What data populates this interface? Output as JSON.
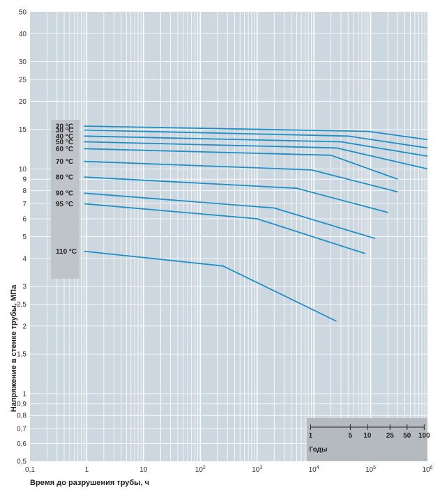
{
  "chart_data": {
    "type": "line",
    "title": "",
    "xlabel": "Время до разрушения трубы, ч",
    "ylabel": "Напряжение в стенке трубы, МПа",
    "x_scale": "log",
    "y_scale": "log",
    "xlim": [
      0.1,
      1000000
    ],
    "ylim": [
      0.5,
      50
    ],
    "grid": true,
    "x_tick_labels": [
      {
        "value": 0.1,
        "base": "0,1",
        "sup": ""
      },
      {
        "value": 1,
        "base": "1",
        "sup": ""
      },
      {
        "value": 10,
        "base": "10",
        "sup": ""
      },
      {
        "value": 100,
        "base": "10",
        "sup": "2"
      },
      {
        "value": 1000,
        "base": "10",
        "sup": "3"
      },
      {
        "value": 10000,
        "base": "10",
        "sup": "4"
      },
      {
        "value": 100000,
        "base": "10",
        "sup": "5"
      },
      {
        "value": 1000000,
        "base": "10",
        "sup": "6"
      }
    ],
    "y_tick_labels": [
      {
        "value": 0.5,
        "label": "0,5"
      },
      {
        "value": 0.6,
        "label": "0,6"
      },
      {
        "value": 0.7,
        "label": "0,7"
      },
      {
        "value": 0.8,
        "label": "0,8"
      },
      {
        "value": 0.9,
        "label": "0,9"
      },
      {
        "value": 1,
        "label": "1"
      },
      {
        "value": 1.5,
        "label": "1,5"
      },
      {
        "value": 2,
        "label": "2"
      },
      {
        "value": 2.5,
        "label": "2,5"
      },
      {
        "value": 3,
        "label": "3"
      },
      {
        "value": 4,
        "label": "4"
      },
      {
        "value": 5,
        "label": "5"
      },
      {
        "value": 6,
        "label": "6"
      },
      {
        "value": 7,
        "label": "7"
      },
      {
        "value": 8,
        "label": "8"
      },
      {
        "value": 9,
        "label": "9"
      },
      {
        "value": 10,
        "label": "10"
      },
      {
        "value": 15,
        "label": "15"
      },
      {
        "value": 20,
        "label": "20"
      },
      {
        "value": 25,
        "label": "25"
      },
      {
        "value": 30,
        "label": "30"
      },
      {
        "value": 40,
        "label": "40"
      },
      {
        "value": 50,
        "label": "50"
      }
    ],
    "series": [
      {
        "name": "20 °C",
        "points": [
          [
            0.9,
            15.5
          ],
          [
            90000,
            14.7
          ],
          [
            1000000,
            13.5
          ]
        ]
      },
      {
        "name": "30 °C",
        "points": [
          [
            0.9,
            14.9
          ],
          [
            40000,
            14.0
          ],
          [
            1000000,
            12.4
          ]
        ]
      },
      {
        "name": "40 °C",
        "points": [
          [
            0.9,
            14.0
          ],
          [
            30000,
            13.2
          ],
          [
            1000000,
            11.4
          ]
        ]
      },
      {
        "name": "50 °C",
        "points": [
          [
            0.9,
            13.2
          ],
          [
            25000,
            12.4
          ],
          [
            1000000,
            10.0
          ]
        ]
      },
      {
        "name": "60 °C",
        "points": [
          [
            0.9,
            12.3
          ],
          [
            20000,
            11.5
          ],
          [
            300000,
            9.0
          ]
        ]
      },
      {
        "name": "70 °C",
        "points": [
          [
            0.9,
            10.8
          ],
          [
            9000,
            9.9
          ],
          [
            300000,
            7.9
          ]
        ]
      },
      {
        "name": "80 °C",
        "points": [
          [
            0.9,
            9.2
          ],
          [
            5000,
            8.2
          ],
          [
            200000,
            6.4
          ]
        ]
      },
      {
        "name": "90 °C",
        "points": [
          [
            0.9,
            7.8
          ],
          [
            2000,
            6.7
          ],
          [
            120000,
            4.9
          ]
        ]
      },
      {
        "name": "95 °C",
        "points": [
          [
            0.9,
            7.0
          ],
          [
            1000,
            6.0
          ],
          [
            80000,
            4.2
          ]
        ]
      },
      {
        "name": "110 °C",
        "points": [
          [
            0.9,
            4.3
          ],
          [
            250,
            3.7
          ],
          [
            25000,
            2.1
          ]
        ]
      }
    ],
    "years_scale": {
      "title": "Годы",
      "ticks": [
        {
          "value": 1,
          "label": "1"
        },
        {
          "value": 5,
          "label": "5"
        },
        {
          "value": 10,
          "label": "10"
        },
        {
          "value": 25,
          "label": "25"
        },
        {
          "value": 50,
          "label": "50"
        },
        {
          "value": 100,
          "label": "100"
        }
      ]
    },
    "colors": {
      "plot_background": "#cdd7e0",
      "grid": "#ffffff",
      "series": "#1f8fc8",
      "label_panel": "#bfc4c9",
      "years_panel": "#b5babf"
    }
  }
}
